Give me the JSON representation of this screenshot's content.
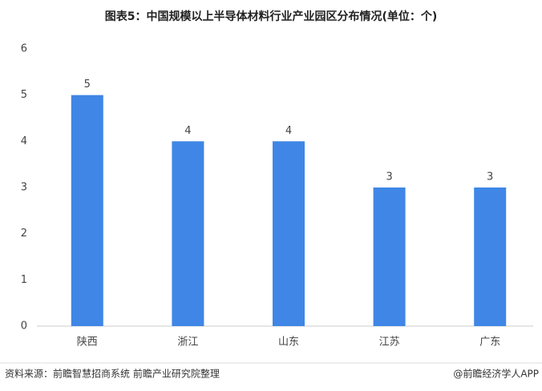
{
  "chart_data": {
    "type": "bar",
    "title": "图表5：中国规模以上半导体材料行业产业园区分布情况(单位：个)",
    "categories": [
      "陕西",
      "浙江",
      "山东",
      "江苏",
      "广东"
    ],
    "values": [
      5,
      4,
      4,
      3,
      3
    ],
    "color": "#3f86e6",
    "ylim": [
      0,
      6
    ],
    "yticks": [
      0,
      1,
      2,
      3,
      4,
      5,
      6
    ],
    "grid": false,
    "source": "资料来源：前瞻智慧招商系统 前瞻产业研究院整理",
    "credit": "@前瞻经济学人APP"
  }
}
